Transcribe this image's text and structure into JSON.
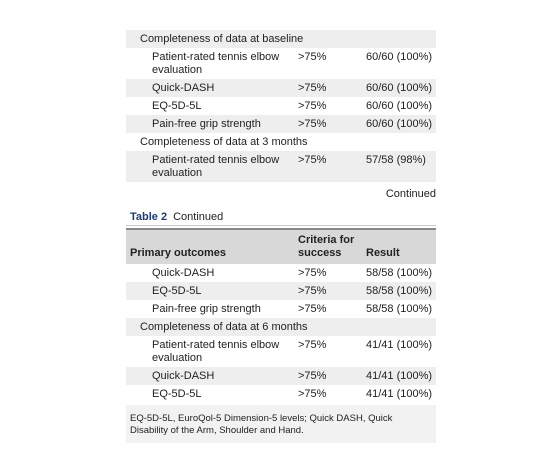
{
  "top_rows": [
    {
      "kind": "section",
      "label": "Completeness of data at baseline"
    },
    {
      "kind": "item",
      "label": "Patient-rated tennis elbow evaluation",
      "criteria": ">75%",
      "result": "60/60 (100%)"
    },
    {
      "kind": "item",
      "label": "Quick-DASH",
      "criteria": ">75%",
      "result": "60/60 (100%)"
    },
    {
      "kind": "item",
      "label": "EQ-5D-5L",
      "criteria": ">75%",
      "result": "60/60 (100%)"
    },
    {
      "kind": "item",
      "label": "Pain-free grip strength",
      "criteria": ">75%",
      "result": "60/60 (100%)"
    },
    {
      "kind": "section",
      "label": "Completeness of data at 3 months"
    },
    {
      "kind": "item",
      "label": "Patient-rated tennis elbow evaluation",
      "criteria": ">75%",
      "result": "57/58 (98%)"
    }
  ],
  "continued_label": "Continued",
  "table2": {
    "number": "Table 2",
    "caption": "Continued",
    "headers": {
      "primary": "Primary outcomes",
      "criteria": "Criteria for success",
      "result": "Result"
    },
    "rows": [
      {
        "kind": "item",
        "label": "Quick-DASH",
        "criteria": ">75%",
        "result": "58/58 (100%)"
      },
      {
        "kind": "item",
        "label": "EQ-5D-5L",
        "criteria": ">75%",
        "result": "58/58 (100%)"
      },
      {
        "kind": "item",
        "label": "Pain-free grip strength",
        "criteria": ">75%",
        "result": "58/58 (100%)"
      },
      {
        "kind": "section",
        "label": "Completeness of data at 6 months"
      },
      {
        "kind": "item",
        "label": "Patient-rated tennis elbow evaluation",
        "criteria": ">75%",
        "result": "41/41 (100%)"
      },
      {
        "kind": "item",
        "label": "Quick-DASH",
        "criteria": ">75%",
        "result": "41/41 (100%)"
      },
      {
        "kind": "item",
        "label": "EQ-5D-5L",
        "criteria": ">75%",
        "result": "41/41 (100%)"
      }
    ],
    "footnote": "EQ-5D-5L, EuroQol-5 Dimension-5 levels; Quick DASH, Quick Disability of the Arm, Shoulder and Hand."
  }
}
